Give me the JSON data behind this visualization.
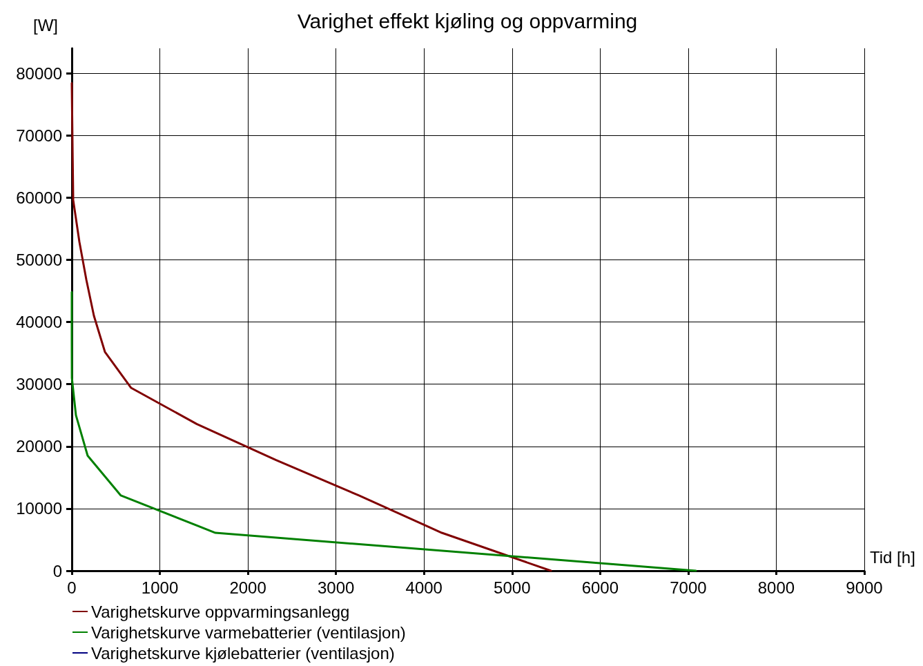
{
  "chart_data": {
    "type": "line",
    "title": "Varighet effekt kjøling og oppvarming",
    "xlabel": "Tid [h]",
    "ylabel": "[W]",
    "xlim": [
      0,
      9000
    ],
    "xticks": [
      0,
      1000,
      2000,
      3000,
      4000,
      5000,
      6000,
      7000,
      8000,
      9000
    ],
    "ylim": [
      0,
      84000
    ],
    "yticks": [
      0,
      10000,
      20000,
      30000,
      40000,
      50000,
      60000,
      70000,
      80000
    ],
    "grid": true,
    "legend": "bottom left",
    "marker": "none",
    "line_style": "solid",
    "series": [
      {
        "name": "Varighetskurve oppvarmingsanlegg",
        "color": "#800000",
        "x": [
          0,
          5,
          10,
          16,
          86,
          165,
          251,
          376,
          674,
          1419,
          2320,
          3261,
          4202,
          5441
        ],
        "values": [
          78400,
          72200,
          66200,
          59600,
          52900,
          46800,
          41000,
          35200,
          29400,
          23600,
          17800,
          12100,
          6100,
          0
        ]
      },
      {
        "name": "Varighetskurve varmebatterier (ventilasjon)",
        "color": "#008000",
        "x": [
          0,
          0,
          1,
          47,
          180,
          557,
          1631,
          7087
        ],
        "values": [
          44800,
          36900,
          31000,
          25000,
          18500,
          12100,
          6100,
          0
        ]
      },
      {
        "name": "Varighetskurve kjølebatterier (ventilasjon)",
        "color": "#000080"
      }
    ]
  }
}
